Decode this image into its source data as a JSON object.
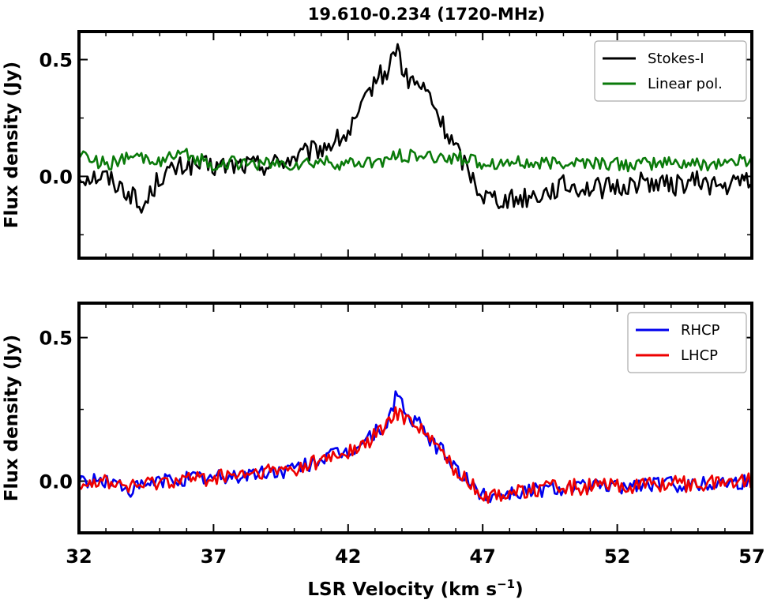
{
  "chart_data": {
    "type": "line",
    "title": "19.610-0.234 (1720-MHz)",
    "xlabel": "LSR Velocity (km s",
    "xlabel_sup": "−1",
    "xlabel_close": ")",
    "xlim": [
      32,
      57
    ],
    "xticks": [
      32,
      37,
      42,
      47,
      52,
      57
    ],
    "xtick_labels": [
      "32",
      "37",
      "42",
      "47",
      "52",
      "57"
    ],
    "panels": [
      {
        "ylabel": "Flux density (Jy)",
        "ylim": [
          -0.35,
          0.62
        ],
        "yticks": [
          0.0,
          0.5
        ],
        "ytick_labels": [
          "0.0",
          "0.5"
        ],
        "minor_yticks": [
          -0.25,
          0.25
        ],
        "legend_position": "top-right",
        "series": [
          {
            "name": "Stokes-I",
            "color": "#000000",
            "x": [
              32,
              33,
              34,
              34.3,
              35,
              36,
              37,
              38,
              39,
              40,
              41,
              42,
              42.5,
              43,
              43.5,
              43.8,
              44.1,
              44.5,
              45,
              45.5,
              46,
              46.5,
              47,
              48,
              49,
              50,
              51,
              52,
              53,
              54,
              55,
              56,
              57
            ],
            "values": [
              0.0,
              0.0,
              -0.08,
              -0.15,
              0.0,
              0.05,
              0.04,
              0.05,
              0.05,
              0.08,
              0.12,
              0.18,
              0.28,
              0.42,
              0.45,
              0.57,
              0.42,
              0.4,
              0.35,
              0.22,
              0.12,
              0.02,
              -0.08,
              -0.1,
              -0.08,
              -0.04,
              -0.05,
              -0.05,
              -0.02,
              -0.04,
              -0.02,
              -0.05,
              0.0
            ]
          },
          {
            "name": "Linear pol.",
            "color": "#0a7a0a",
            "x": [
              32,
              33,
              34,
              35,
              36,
              37,
              38,
              39,
              40,
              41,
              42,
              43,
              44,
              45,
              46,
              47,
              48,
              49,
              50,
              51,
              52,
              53,
              54,
              55,
              56,
              57
            ],
            "values": [
              0.1,
              0.05,
              0.08,
              0.07,
              0.09,
              0.05,
              0.06,
              0.05,
              0.05,
              0.06,
              0.05,
              0.06,
              0.09,
              0.08,
              0.08,
              0.06,
              0.06,
              0.05,
              0.06,
              0.06,
              0.05,
              0.05,
              0.06,
              0.05,
              0.06,
              0.07
            ]
          }
        ]
      },
      {
        "ylabel": "Flux density (Jy)",
        "ylim": [
          -0.18,
          0.62
        ],
        "yticks": [
          0.0,
          0.5
        ],
        "ytick_labels": [
          "0.0",
          "0.5"
        ],
        "minor_yticks": [
          0.25
        ],
        "legend_position": "top-right",
        "series": [
          {
            "name": "RHCP",
            "color": "#0000ee",
            "x": [
              32,
              33,
              34,
              35,
              36,
              37,
              38,
              39,
              40,
              41,
              42,
              42.5,
              43,
              43.5,
              43.8,
              44.2,
              44.6,
              45,
              45.5,
              46,
              46.5,
              47,
              48,
              49,
              50,
              51,
              52,
              53,
              54,
              55,
              56,
              57
            ],
            "values": [
              0.0,
              0.0,
              -0.03,
              0.0,
              0.01,
              0.01,
              0.02,
              0.03,
              0.04,
              0.08,
              0.1,
              0.13,
              0.17,
              0.2,
              0.32,
              0.22,
              0.2,
              0.15,
              0.1,
              0.05,
              -0.01,
              -0.05,
              -0.04,
              -0.03,
              -0.02,
              -0.02,
              -0.02,
              -0.01,
              -0.01,
              -0.01,
              0.0,
              0.0
            ]
          },
          {
            "name": "LHCP",
            "color": "#ee0000",
            "x": [
              32,
              33,
              34,
              35,
              36,
              37,
              38,
              39,
              40,
              41,
              42,
              42.5,
              43,
              43.5,
              43.8,
              44.2,
              44.6,
              45,
              45.5,
              46,
              46.5,
              47,
              48,
              49,
              50,
              51,
              52,
              53,
              54,
              55,
              56,
              57
            ],
            "values": [
              0.0,
              0.0,
              -0.02,
              0.0,
              0.01,
              0.01,
              0.02,
              0.03,
              0.04,
              0.07,
              0.1,
              0.12,
              0.16,
              0.2,
              0.24,
              0.22,
              0.2,
              0.15,
              0.1,
              0.04,
              -0.01,
              -0.05,
              -0.04,
              -0.03,
              -0.02,
              -0.02,
              -0.02,
              -0.01,
              -0.01,
              -0.01,
              0.0,
              0.0
            ]
          }
        ]
      }
    ]
  }
}
